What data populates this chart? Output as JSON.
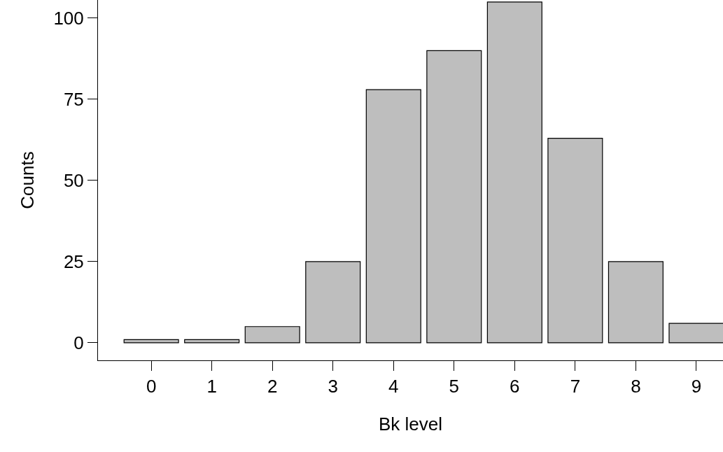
{
  "chart_data": {
    "type": "bar",
    "xlabel": "Bk level",
    "ylabel": "Counts",
    "x": [
      0,
      1,
      2,
      3,
      4,
      5,
      6,
      7,
      8,
      9
    ],
    "values": [
      1,
      1,
      5,
      25,
      78,
      90,
      105,
      63,
      25,
      6
    ],
    "color": "#bebebe",
    "xlim": [
      -0.88,
      9.44
    ],
    "ylim": [
      -5.4,
      105.6
    ],
    "xticks": [
      0,
      1,
      2,
      3,
      4,
      5,
      6,
      7,
      8,
      9
    ],
    "yticks": [
      0,
      25,
      50,
      75,
      100
    ]
  }
}
